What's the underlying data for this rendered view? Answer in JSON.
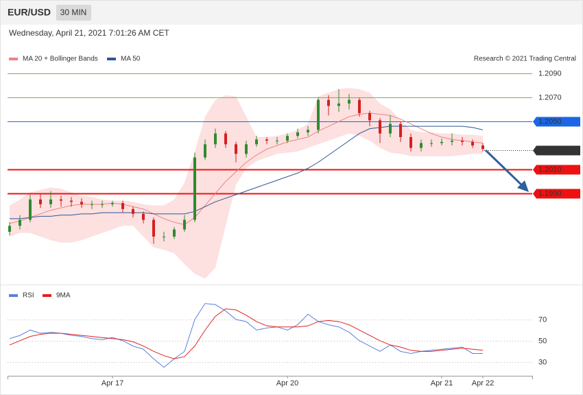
{
  "header": {
    "symbol": "EUR/USD",
    "interval": "30 MIN",
    "timestamp": "Wednesday, April 21, 2021 7:01:26 AM CET"
  },
  "chart_data": [
    {
      "type": "candlestick",
      "credit": "Research © 2021 Trading Central",
      "ylim": [
        1.1914,
        1.2117
      ],
      "up_color": "#2e8b2e",
      "down_color": "#d42020",
      "open": [
        1.1958,
        1.1963,
        1.1968,
        1.1985,
        1.1981,
        1.1985,
        1.1984,
        1.1983,
        1.1981,
        1.1981,
        1.1981,
        1.1982,
        1.1977,
        1.1973,
        1.1968,
        1.1954,
        1.1954,
        1.196,
        1.1968,
        1.202,
        1.2031,
        1.204,
        1.2031,
        1.2023,
        1.2031,
        1.2035,
        1.2034,
        1.2034,
        1.2038,
        1.2041,
        1.2043,
        1.2068,
        1.2063,
        1.2065,
        1.2068,
        1.2057,
        1.2051,
        1.204,
        1.2048,
        1.2037,
        1.2028,
        1.2032,
        1.2032,
        1.2033,
        1.2034,
        1.2033,
        1.203
      ],
      "high": [
        1.1966,
        1.1972,
        1.1989,
        1.199,
        1.1992,
        1.1988,
        1.1987,
        1.1986,
        1.1984,
        1.1984,
        1.1984,
        1.1984,
        1.1979,
        1.1975,
        1.197,
        1.1958,
        1.1962,
        1.1972,
        1.2024,
        1.2035,
        1.2044,
        1.2042,
        1.2033,
        1.2034,
        1.2038,
        1.2037,
        1.2037,
        1.204,
        1.2044,
        1.2046,
        1.207,
        1.2072,
        1.2077,
        1.2073,
        1.207,
        1.2059,
        1.2053,
        1.2055,
        1.205,
        1.204,
        1.2035,
        1.2035,
        1.2036,
        1.204,
        1.2037,
        1.2035,
        1.2032
      ],
      "low": [
        1.1955,
        1.196,
        1.1966,
        1.1978,
        1.1978,
        1.1979,
        1.1979,
        1.1978,
        1.1977,
        1.1978,
        1.1979,
        1.1974,
        1.197,
        1.1965,
        1.1948,
        1.195,
        1.1952,
        1.1958,
        1.1966,
        1.2018,
        1.2028,
        1.2028,
        1.2016,
        1.202,
        1.2029,
        1.2031,
        1.2031,
        1.2032,
        1.2036,
        1.2038,
        1.204,
        1.2055,
        1.2058,
        1.206,
        1.2054,
        1.2046,
        1.2032,
        1.2037,
        1.2033,
        1.2025,
        1.2025,
        1.2029,
        1.203,
        1.203,
        1.203,
        1.2028,
        1.2025
      ],
      "close": [
        1.1963,
        1.1968,
        1.1985,
        1.1981,
        1.1985,
        1.1984,
        1.1983,
        1.1981,
        1.1981,
        1.1981,
        1.1982,
        1.1977,
        1.1973,
        1.1968,
        1.1954,
        1.1954,
        1.196,
        1.1968,
        1.202,
        1.2031,
        1.204,
        1.2031,
        1.2023,
        1.2031,
        1.2035,
        1.2034,
        1.2034,
        1.2038,
        1.2041,
        1.2043,
        1.2068,
        1.2063,
        1.2065,
        1.2068,
        1.2057,
        1.2051,
        1.204,
        1.2048,
        1.2037,
        1.2028,
        1.2032,
        1.2032,
        1.2033,
        1.2034,
        1.2033,
        1.203,
        1.2027
      ],
      "series": [
        {
          "name": "MA 20 + Bollinger Bands",
          "color": "#f08080",
          "values": [
            1.1965,
            1.1967,
            1.197,
            1.1973,
            1.1976,
            1.1978,
            1.198,
            1.1981,
            1.1981,
            1.1981,
            1.1982,
            1.1981,
            1.1979,
            1.1977,
            1.1973,
            1.1969,
            1.1966,
            1.1964,
            1.197,
            1.198,
            1.199,
            1.2,
            1.2008,
            1.2016,
            1.2022,
            1.2027,
            1.203,
            1.2033,
            1.2035,
            1.2037,
            1.2042,
            1.2046,
            1.205,
            1.2054,
            1.2056,
            1.2057,
            1.2056,
            1.2055,
            1.2052,
            1.2048,
            1.2044,
            1.204,
            1.2037,
            1.2035,
            1.2034,
            1.2033,
            1.2032
          ]
        },
        {
          "name": "MA 50",
          "color": "#2b5797",
          "values": [
            1.1969,
            1.1969,
            1.197,
            1.1971,
            1.1971,
            1.1972,
            1.1972,
            1.1973,
            1.1973,
            1.1974,
            1.1974,
            1.1974,
            1.1974,
            1.1974,
            1.1973,
            1.1973,
            1.1973,
            1.1973,
            1.1975,
            1.1979,
            1.1983,
            1.1986,
            1.1989,
            1.1992,
            1.1995,
            1.1998,
            1.2001,
            1.2004,
            1.2007,
            1.2011,
            1.2016,
            1.2022,
            1.2028,
            1.2034,
            1.204,
            1.2044,
            1.2045,
            1.2046,
            1.2046,
            1.2046,
            1.2046,
            1.2046,
            1.2046,
            1.2046,
            1.2046,
            1.2045,
            1.2043
          ]
        }
      ],
      "bands": {
        "color": "#fde0e0",
        "upper": [
          1.198,
          1.1985,
          1.1991,
          1.1993,
          1.1995,
          1.1994,
          1.1991,
          1.1988,
          1.1987,
          1.1985,
          1.1984,
          1.1984,
          1.1983,
          1.1981,
          1.198,
          1.198,
          1.1985,
          1.1999,
          1.2025,
          1.2054,
          1.2068,
          1.2072,
          1.2071,
          1.2054,
          1.2037,
          1.2037,
          1.2038,
          1.204,
          1.2043,
          1.2048,
          1.2071,
          1.2074,
          1.2077,
          1.2078,
          1.2077,
          1.2074,
          1.2065,
          1.206,
          1.2051,
          1.2043,
          1.2041,
          1.2041,
          1.204,
          1.204,
          1.2039,
          1.2039,
          1.2038
        ],
        "lower": [
          1.1954,
          1.1957,
          1.1957,
          1.1954,
          1.1951,
          1.1949,
          1.1949,
          1.1951,
          1.1954,
          1.1957,
          1.196,
          1.1963,
          1.1963,
          1.1954,
          1.1945,
          1.1943,
          1.194,
          1.1931,
          1.1923,
          1.1919,
          1.1928,
          1.1963,
          1.1997,
          1.2011,
          1.2017,
          1.202,
          1.2023,
          1.2024,
          1.2025,
          1.2028,
          1.2031,
          1.2034,
          1.2037,
          1.204,
          1.2038,
          1.2034,
          1.2028,
          1.2024,
          1.2023,
          1.2021,
          1.2021,
          1.2021,
          1.2021,
          1.2021,
          1.2022,
          1.2023,
          1.2023
        ]
      },
      "levels": [
        {
          "value": 1.209,
          "label": "1.2090",
          "color": "#7cb342",
          "box": false,
          "style": "solid",
          "weight": 1
        },
        {
          "value": 1.207,
          "label": "1.2070",
          "color": "#7cb342",
          "box": false,
          "style": "solid",
          "weight": 1
        },
        {
          "value": 1.205,
          "label": "1.2050",
          "color": "#1a66e6",
          "box": true,
          "style": "solid",
          "weight": 1
        },
        {
          "value": 1.2026,
          "label": "1.2026",
          "color": "#333333",
          "box": true,
          "style": "dotted",
          "weight": 1
        },
        {
          "value": 1.201,
          "label": "1.2010",
          "color": "#ee1111",
          "box": true,
          "style": "solid",
          "weight": 2
        },
        {
          "value": 1.199,
          "label": "1.1990",
          "color": "#ee1111",
          "box": true,
          "style": "solid",
          "weight": 2
        }
      ]
    },
    {
      "type": "line",
      "categories": [
        null,
        null,
        null,
        null,
        null,
        null,
        null,
        null,
        null,
        null,
        "Apr 17",
        null,
        null,
        null,
        null,
        null,
        null,
        null,
        null,
        null,
        null,
        null,
        null,
        null,
        null,
        null,
        null,
        "Apr 20",
        null,
        null,
        null,
        null,
        null,
        null,
        null,
        null,
        null,
        null,
        null,
        null,
        null,
        null,
        "Apr 21",
        null,
        null,
        null,
        "Apr 22"
      ],
      "ylim": [
        17,
        87
      ],
      "yticks": [
        30,
        50,
        70
      ],
      "grid": true,
      "series": [
        {
          "name": "RSI",
          "color": "#5b7fde",
          "values": [
            52,
            55,
            60,
            57,
            58,
            57,
            55,
            54,
            52,
            51,
            53,
            50,
            45,
            42,
            33,
            25,
            33,
            40,
            70,
            85,
            84,
            78,
            70,
            68,
            60,
            62,
            63,
            60,
            65,
            75,
            68,
            65,
            63,
            58,
            50,
            45,
            40,
            46,
            40,
            38,
            40,
            41,
            42,
            43,
            44,
            38,
            38
          ]
        },
        {
          "name": "9MA",
          "color": "#e02020",
          "values": [
            46,
            50,
            54,
            56,
            57,
            57,
            56,
            55,
            54,
            53,
            52,
            51,
            49,
            45,
            40,
            36,
            33,
            35,
            45,
            60,
            73,
            80,
            79,
            74,
            68,
            64,
            63,
            63,
            63,
            64,
            68,
            69,
            68,
            65,
            60,
            55,
            50,
            46,
            44,
            41,
            40,
            40,
            41,
            42,
            43,
            42,
            41
          ]
        }
      ]
    }
  ]
}
